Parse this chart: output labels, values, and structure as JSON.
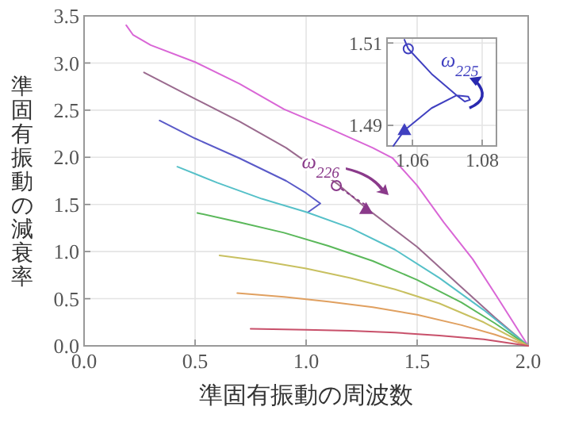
{
  "chart_data": [
    {
      "type": "line",
      "xlabel": "準固有振動の周波数",
      "ylabel": "準固有振動の減衰率",
      "xlim": [
        0,
        2.0
      ],
      "ylim": [
        0,
        3.5
      ],
      "xticks": [
        {
          "value": 0,
          "label": "0.0"
        },
        0.5,
        {
          "value": 1,
          "label": "1.0"
        },
        1.5,
        {
          "value": 2,
          "label": "2.0"
        }
      ],
      "yticks": [
        {
          "value": 0,
          "label": "0.0"
        },
        0.5,
        {
          "value": 1,
          "label": "1.0"
        },
        1.5,
        {
          "value": 2,
          "label": "2.0"
        },
        2.5,
        {
          "value": 3,
          "label": "3.0"
        },
        3.5
      ],
      "grid": true,
      "series": [
        {
          "type": "line",
          "color": "#d966d6",
          "x": [
            0.19,
            0.22,
            0.3,
            0.5,
            0.7,
            0.9,
            1.1,
            1.3,
            1.39,
            1.5,
            1.62,
            1.75,
            1.86,
            2.0
          ],
          "values": [
            3.4,
            3.3,
            3.19,
            3.01,
            2.78,
            2.51,
            2.31,
            2.1,
            1.99,
            1.7,
            1.31,
            0.92,
            0.52,
            0
          ]
        },
        {
          "type": "line",
          "color": "#9a6a8e",
          "x": [
            0.27,
            0.5,
            0.7,
            0.91,
            1.14,
            1.26,
            1.5,
            1.7,
            1.85,
            2.0
          ],
          "values": [
            2.9,
            2.62,
            2.38,
            2.1,
            1.72,
            1.48,
            1.05,
            0.62,
            0.3,
            0
          ]
        },
        {
          "type": "line",
          "color": "#5a5ac8",
          "x": [
            0.34,
            0.5,
            0.7,
            0.91,
            1.0,
            1.064,
            1.01
          ],
          "values": [
            2.39,
            2.2,
            1.99,
            1.75,
            1.62,
            1.51,
            1.42
          ]
        },
        {
          "type": "line",
          "color": "#55c0c8",
          "x": [
            0.42,
            0.6,
            0.8,
            1.0,
            1.2,
            1.4,
            1.6,
            1.8,
            2.0
          ],
          "values": [
            1.9,
            1.73,
            1.56,
            1.42,
            1.25,
            1.02,
            0.72,
            0.38,
            0
          ]
        },
        {
          "type": "line",
          "color": "#5ab85a",
          "x": [
            0.51,
            0.7,
            0.9,
            1.1,
            1.3,
            1.5,
            1.7,
            1.85,
            2.0
          ],
          "values": [
            1.41,
            1.31,
            1.2,
            1.06,
            0.9,
            0.7,
            0.46,
            0.24,
            0
          ]
        },
        {
          "type": "line",
          "color": "#c8c060",
          "x": [
            0.61,
            0.8,
            1.0,
            1.2,
            1.4,
            1.6,
            1.8,
            2.0
          ],
          "values": [
            0.96,
            0.9,
            0.82,
            0.72,
            0.6,
            0.45,
            0.25,
            0
          ]
        },
        {
          "type": "line",
          "color": "#e0a060",
          "x": [
            0.69,
            0.9,
            1.1,
            1.3,
            1.5,
            1.7,
            1.85,
            2.0
          ],
          "values": [
            0.56,
            0.52,
            0.47,
            0.41,
            0.33,
            0.22,
            0.12,
            0
          ]
        },
        {
          "type": "line",
          "color": "#c8506a",
          "x": [
            0.75,
            1.0,
            1.2,
            1.4,
            1.6,
            1.8,
            2.0
          ],
          "values": [
            0.18,
            0.17,
            0.16,
            0.14,
            0.11,
            0.07,
            0
          ]
        },
        {
          "type": "scatter",
          "color": "#8a3a8a",
          "marker": "circle",
          "x": [
            1.136
          ],
          "values": [
            1.7
          ]
        },
        {
          "type": "scatter",
          "color": "#8a3a8a",
          "marker": "triangle",
          "x": [
            1.27
          ],
          "values": [
            1.45
          ]
        }
      ],
      "annotations": [
        {
          "text": "ω$_{226}$",
          "x": 1.136,
          "y": 1.7
        }
      ]
    },
    {
      "type": "line",
      "xlim": [
        1.0527,
        1.0841
      ],
      "ylim": [
        1.485,
        1.5112
      ],
      "xticks": [
        1.06,
        1.08
      ],
      "yticks": [
        1.49,
        1.51
      ],
      "grid": true,
      "series": [
        {
          "type": "line",
          "color": "#4040c0",
          "x": [
            1.0577,
            1.0588,
            1.0655,
            1.0727,
            1.076,
            1.0765,
            1.075,
            1.0727,
            1.0655,
            1.0577,
            1.0545
          ],
          "values": [
            1.5108,
            1.5086,
            1.5025,
            1.4973,
            1.497,
            1.4962,
            1.4958,
            1.4973,
            1.4942,
            1.4888,
            1.485
          ]
        },
        {
          "type": "scatter",
          "color": "#4040c0",
          "marker": "circle",
          "x": [
            1.0588
          ],
          "values": [
            1.5086
          ]
        },
        {
          "type": "scatter",
          "color": "#4040c0",
          "marker": "triangle",
          "x": [
            1.0577
          ],
          "values": [
            1.4888
          ]
        }
      ],
      "annotations": [
        {
          "text": "ω$_{225}$",
          "x": 1.0727,
          "y": 1.4973
        }
      ]
    }
  ]
}
